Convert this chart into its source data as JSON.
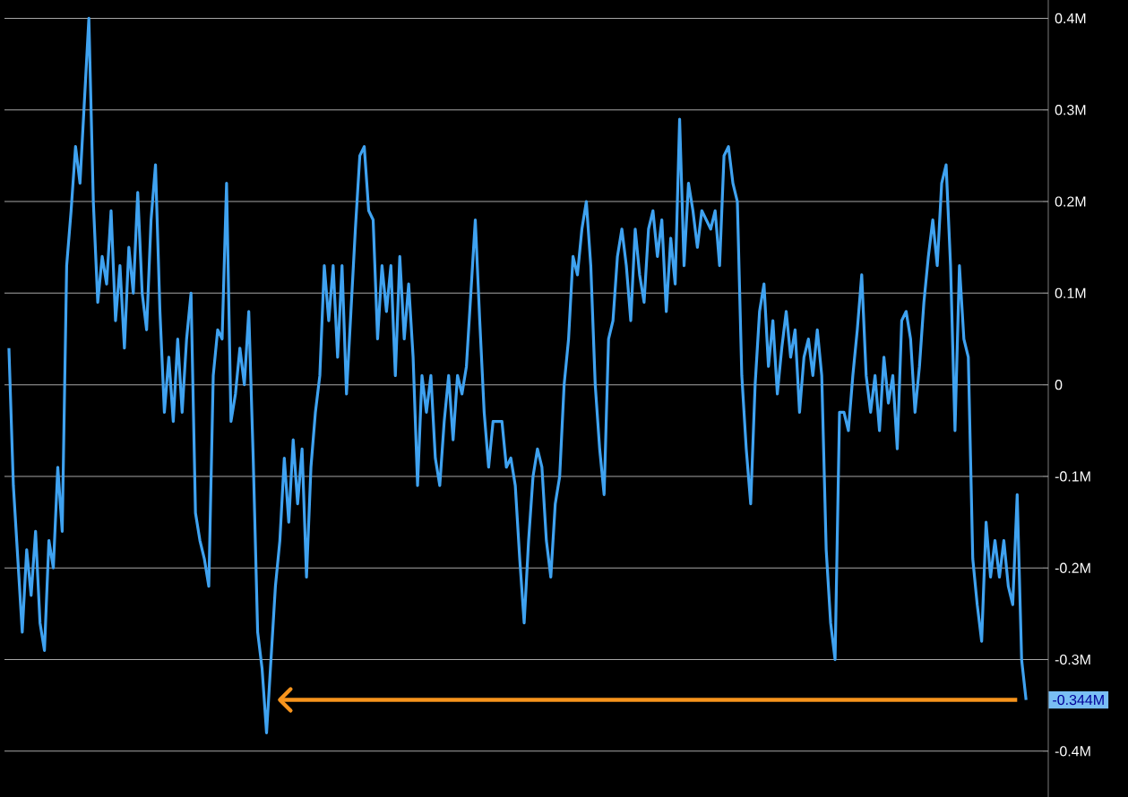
{
  "chart_data": {
    "type": "line",
    "categories": [
      null,
      null,
      null,
      null,
      null,
      null,
      null,
      null,
      null,
      null,
      null,
      null,
      null,
      null,
      null,
      null,
      null,
      null,
      null,
      null,
      null,
      null,
      null,
      null,
      null,
      null,
      null,
      null,
      null,
      null,
      null,
      null,
      null,
      null,
      null,
      null,
      null,
      null,
      null,
      null,
      null,
      null,
      null,
      null,
      null,
      null,
      null,
      null,
      null,
      null,
      null,
      null,
      null,
      null,
      null,
      null,
      null,
      null,
      null,
      null,
      null,
      null,
      null,
      null,
      null,
      null,
      null,
      null,
      null,
      null,
      null,
      null,
      null,
      null,
      null,
      null,
      null,
      null,
      null,
      null,
      null,
      null,
      null,
      null,
      null,
      null,
      null,
      null,
      null,
      null,
      null,
      null,
      null,
      null,
      null,
      null,
      null,
      null,
      null,
      null,
      null,
      null,
      null,
      null,
      null,
      null,
      null,
      null,
      null,
      null,
      null,
      null,
      null,
      null,
      null,
      null,
      null,
      null,
      null,
      null,
      null,
      null,
      null,
      null,
      null,
      null,
      null,
      null,
      null,
      null,
      null,
      null,
      null,
      null,
      null,
      null,
      null,
      null,
      null,
      null,
      null,
      null,
      null,
      null,
      null,
      null,
      null,
      null,
      null,
      null,
      null,
      null,
      null,
      null,
      null,
      null,
      null,
      null,
      null,
      null,
      null,
      null,
      null,
      null,
      null,
      null,
      null,
      null,
      null,
      null,
      null,
      null,
      null,
      null,
      null,
      null,
      null,
      null,
      null,
      null,
      null,
      null,
      null,
      null,
      null,
      null,
      null,
      null,
      null,
      null,
      null,
      null,
      null,
      null,
      null,
      null,
      null,
      null,
      null,
      null,
      null,
      null,
      null,
      null,
      null,
      null,
      null,
      null,
      null,
      null,
      null,
      null,
      null,
      null,
      null,
      null,
      null,
      null,
      null,
      null,
      null,
      null,
      null,
      null,
      null,
      null,
      null,
      null,
      null,
      null
    ],
    "values": [
      0.04,
      -0.11,
      -0.19,
      -0.27,
      -0.18,
      -0.23,
      -0.16,
      -0.26,
      -0.29,
      -0.17,
      -0.2,
      -0.09,
      -0.16,
      0.13,
      0.19,
      0.26,
      0.22,
      0.31,
      0.4,
      0.2,
      0.09,
      0.14,
      0.11,
      0.19,
      0.07,
      0.13,
      0.04,
      0.15,
      0.1,
      0.21,
      0.1,
      0.06,
      0.18,
      0.24,
      0.08,
      -0.03,
      0.03,
      -0.04,
      0.05,
      -0.03,
      0.05,
      0.1,
      -0.14,
      -0.17,
      -0.19,
      -0.22,
      0.01,
      0.06,
      0.05,
      0.22,
      -0.04,
      -0.01,
      0.04,
      0.0,
      0.08,
      -0.08,
      -0.27,
      -0.31,
      -0.38,
      -0.3,
      -0.22,
      -0.17,
      -0.08,
      -0.15,
      -0.06,
      -0.13,
      -0.07,
      -0.21,
      -0.09,
      -0.03,
      0.01,
      0.13,
      0.07,
      0.13,
      0.03,
      0.13,
      -0.01,
      0.08,
      0.17,
      0.25,
      0.26,
      0.19,
      0.18,
      0.05,
      0.13,
      0.08,
      0.13,
      0.01,
      0.14,
      0.05,
      0.11,
      0.03,
      -0.11,
      0.01,
      -0.03,
      0.01,
      -0.08,
      -0.11,
      -0.04,
      0.01,
      -0.06,
      0.01,
      -0.01,
      0.02,
      0.1,
      0.18,
      0.07,
      -0.03,
      -0.09,
      -0.04,
      -0.04,
      -0.04,
      -0.09,
      -0.08,
      -0.11,
      -0.19,
      -0.26,
      -0.17,
      -0.1,
      -0.07,
      -0.09,
      -0.17,
      -0.21,
      -0.13,
      -0.1,
      0.0,
      0.05,
      0.14,
      0.12,
      0.17,
      0.2,
      0.13,
      0.0,
      -0.07,
      -0.12,
      0.05,
      0.07,
      0.14,
      0.17,
      0.13,
      0.07,
      0.17,
      0.12,
      0.09,
      0.17,
      0.19,
      0.14,
      0.18,
      0.08,
      0.16,
      0.11,
      0.29,
      0.13,
      0.22,
      0.19,
      0.15,
      0.19,
      0.18,
      0.17,
      0.19,
      0.13,
      0.25,
      0.26,
      0.22,
      0.2,
      0.01,
      -0.07,
      -0.13,
      0.0,
      0.08,
      0.11,
      0.02,
      0.07,
      -0.01,
      0.04,
      0.08,
      0.03,
      0.06,
      -0.03,
      0.03,
      0.05,
      0.01,
      0.06,
      0.01,
      -0.18,
      -0.26,
      -0.3,
      -0.03,
      -0.03,
      -0.05,
      0.01,
      0.06,
      0.12,
      0.01,
      -0.03,
      0.01,
      -0.05,
      0.03,
      -0.02,
      0.01,
      -0.07,
      0.07,
      0.08,
      0.05,
      -0.03,
      0.02,
      0.09,
      0.14,
      0.18,
      0.13,
      0.22,
      0.24,
      0.13,
      -0.05,
      0.13,
      0.05,
      0.03,
      -0.19,
      -0.24,
      -0.28,
      -0.15,
      -0.21,
      -0.17,
      -0.21,
      -0.17,
      -0.22,
      -0.24,
      -0.12,
      -0.3,
      -0.344
    ],
    "color": "#3fa2f0",
    "ylim": [
      -0.45,
      0.42
    ],
    "yticks": [
      {
        "value": 0.4,
        "label": "0.4M"
      },
      {
        "value": 0.3,
        "label": "0.3M"
      },
      {
        "value": 0.2,
        "label": "0.2M"
      },
      {
        "value": 0.1,
        "label": "0.1M"
      },
      0,
      {
        "value": -0.1,
        "label": "-0.1M"
      },
      {
        "value": -0.2,
        "label": "-0.2M"
      },
      {
        "value": -0.3,
        "label": "-0.3M"
      },
      {
        "value": -0.4,
        "label": "-0.4M"
      }
    ],
    "grid": "y",
    "tick_labels": "y",
    "ref_lines": [
      {
        "axis": "y",
        "value": -0.344,
        "label": "-0.344M",
        "color": "#f7941d"
      }
    ]
  }
}
